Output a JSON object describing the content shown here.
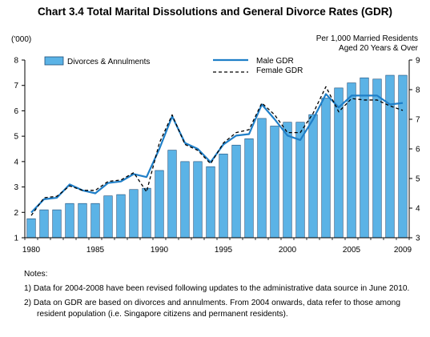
{
  "title": "Chart 3.4  Total Marital Dissolutions and General Divorce Rates (GDR)",
  "left_axis_unit": "('000)",
  "right_axis_caption": [
    "Per 1,000 Married Residents",
    "Aged 20 Years & Over"
  ],
  "legend": {
    "bars": "Divorces & Annulments",
    "male": "Male GDR",
    "female": "Female GDR"
  },
  "colors": {
    "bar_fill": "#5bb3e6",
    "bar_stroke": "#1f4e79",
    "male_line": "#1f7fc8",
    "female_line": "#000000"
  },
  "notes": {
    "header": "Notes:",
    "items": [
      "1)  Data for 2004-2008 have been revised following updates to the administrative data source in June 2010.",
      "2)  Data on GDR are based on divorces and annulments.  From 2004 onwards, data refer to those among resident population (i.e. Singapore citizens and permanent residents)."
    ]
  },
  "chart_data": {
    "type": "bar",
    "title": "Chart 3.4  Total Marital Dissolutions and General Divorce Rates (GDR)",
    "categories": [
      1980,
      1981,
      1982,
      1983,
      1984,
      1985,
      1986,
      1987,
      1988,
      1989,
      1990,
      1991,
      1992,
      1993,
      1994,
      1995,
      1996,
      1997,
      1998,
      1999,
      2000,
      2001,
      2002,
      2003,
      2004,
      2005,
      2006,
      2007,
      2008,
      2009
    ],
    "x_tick_labels": [
      "1980",
      "1985",
      "1990",
      "1995",
      "2000",
      "2005",
      "2009"
    ],
    "x_tick_years": [
      1980,
      1985,
      1990,
      1995,
      2000,
      2005,
      2009
    ],
    "series": [
      {
        "name": "Divorces & Annulments",
        "axis": "left",
        "type": "bar",
        "values": [
          1.75,
          2.1,
          2.1,
          2.35,
          2.35,
          2.35,
          2.65,
          2.7,
          2.9,
          2.95,
          3.65,
          4.45,
          4.0,
          4.0,
          3.8,
          4.3,
          4.65,
          4.9,
          5.7,
          5.4,
          5.55,
          5.55,
          5.85,
          6.5,
          6.9,
          7.1,
          7.3,
          7.25,
          7.4,
          7.4
        ]
      },
      {
        "name": "Male GDR",
        "axis": "right",
        "type": "line",
        "values": [
          3.85,
          4.3,
          4.35,
          4.8,
          4.6,
          4.5,
          4.85,
          4.9,
          5.15,
          5.05,
          6.0,
          7.1,
          6.2,
          6.0,
          5.55,
          6.15,
          6.45,
          6.5,
          7.5,
          7.0,
          6.45,
          6.3,
          7.0,
          7.85,
          7.4,
          7.8,
          7.8,
          7.8,
          7.5,
          7.55
        ]
      },
      {
        "name": "Female GDR",
        "axis": "right",
        "type": "line",
        "values": [
          3.75,
          4.35,
          4.4,
          4.75,
          4.6,
          4.6,
          4.9,
          4.95,
          5.2,
          4.55,
          6.2,
          7.15,
          6.15,
          5.95,
          5.5,
          6.2,
          6.55,
          6.65,
          7.55,
          7.15,
          6.55,
          6.55,
          7.2,
          8.1,
          7.25,
          7.7,
          7.65,
          7.65,
          7.45,
          7.3
        ]
      }
    ],
    "ylabel": "('000)",
    "ylim": [
      1,
      8
    ],
    "y_ticks": [
      1,
      2,
      3,
      4,
      5,
      6,
      7,
      8
    ],
    "y2label": "Per 1,000 Married Residents Aged 20 Years & Over",
    "y2lim": [
      3,
      9
    ],
    "y2_ticks": [
      3,
      4,
      5,
      6,
      7,
      8,
      9
    ],
    "grid": false,
    "legend_position": "top"
  }
}
